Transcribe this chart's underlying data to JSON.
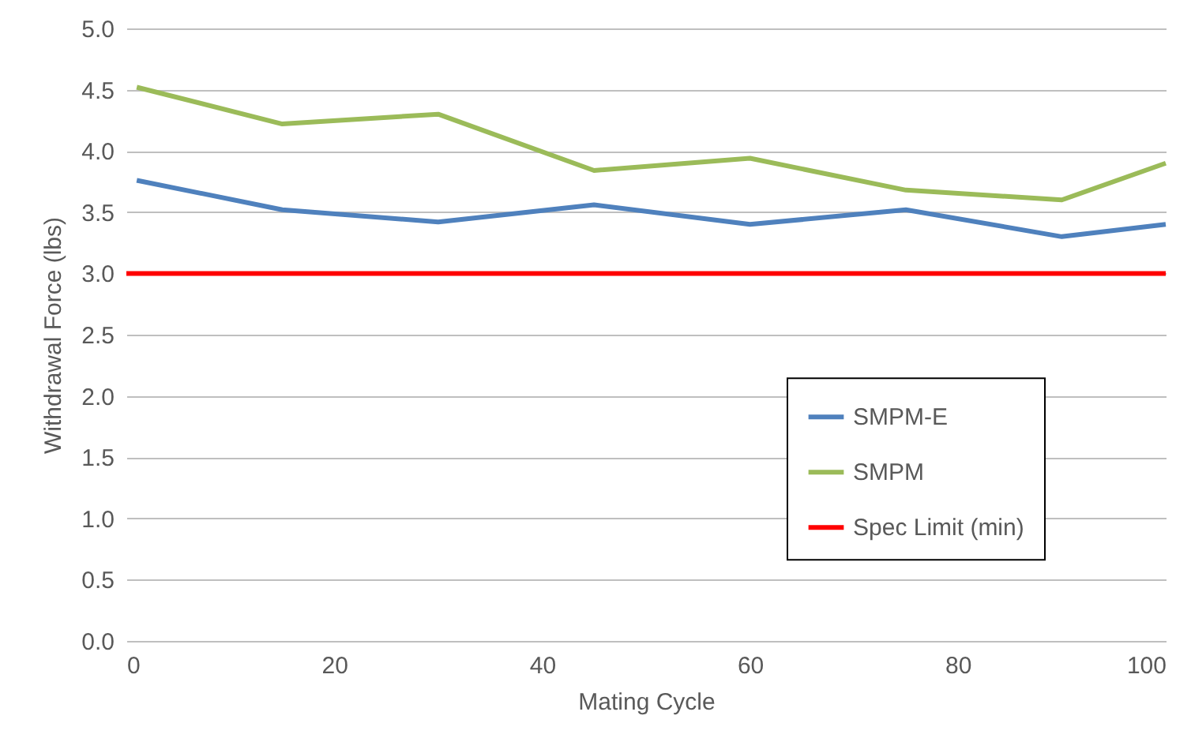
{
  "chart_data": {
    "type": "line",
    "xlabel": "Mating Cycle",
    "ylabel": "Withdrawal Force (lbs)",
    "xlim": [
      0,
      100
    ],
    "xticks": [
      0,
      20,
      40,
      60,
      80,
      100
    ],
    "ylim": [
      0,
      5
    ],
    "yticks": [
      {
        "value": 0,
        "label": "0.0"
      },
      0.5,
      {
        "value": 1,
        "label": "1.0"
      },
      1.5,
      {
        "value": 2,
        "label": "2.0"
      },
      2.5,
      {
        "value": 3,
        "label": "3.0"
      },
      3.5,
      {
        "value": 4,
        "label": "4.0"
      },
      4.5,
      {
        "value": 5,
        "label": "5.0"
      }
    ],
    "grid": "y",
    "legend": "right",
    "marker": "none",
    "line_style": "solid",
    "series": [
      {
        "name": "SMPM-E",
        "color": "#4f81bd",
        "x": [
          1,
          15,
          30,
          45,
          60,
          75,
          90,
          100
        ],
        "values": [
          3.76,
          3.52,
          3.42,
          3.56,
          3.4,
          3.52,
          3.3,
          3.4
        ]
      },
      {
        "name": "SMPM",
        "color": "#9bbb59",
        "x": [
          1,
          15,
          30,
          45,
          60,
          75,
          90,
          100
        ],
        "values": [
          4.52,
          4.22,
          4.3,
          3.84,
          3.94,
          3.68,
          3.6,
          3.9
        ]
      },
      {
        "name": "Spec Limit (min)",
        "color": "#ff0000",
        "x": [
          0,
          100
        ],
        "values": [
          3.0,
          3.0
        ]
      }
    ]
  }
}
